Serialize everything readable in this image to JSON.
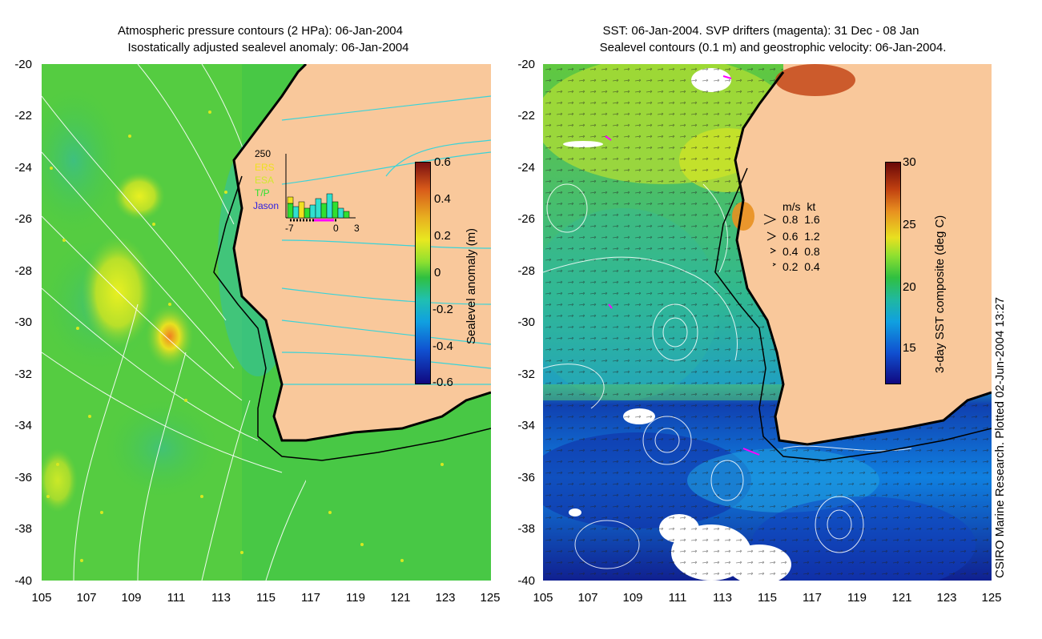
{
  "left_panel": {
    "title_line1": "Atmospheric pressure contours (2 HPa): 06-Jan-2004",
    "title_line2": "Isostatically adjusted sealevel anomaly: 06-Jan-2004",
    "y_ticks": [
      "-20",
      "-22",
      "-24",
      "-26",
      "-28",
      "-30",
      "-32",
      "-34",
      "-36",
      "-38",
      "-40"
    ],
    "x_ticks": [
      "105",
      "107",
      "109",
      "111",
      "113",
      "115",
      "117",
      "119",
      "121",
      "123",
      "125"
    ],
    "colorbar": {
      "label": "Sealevel anomaly (m)",
      "ticks": [
        "0.6",
        "0.4",
        "0.2",
        "0",
        "-0.2",
        "-0.4",
        "-0.6"
      ]
    },
    "histogram": {
      "max_label": "250",
      "legend": [
        "ERS",
        "ESA",
        "T/P",
        "Jason"
      ],
      "x_labels": [
        "-7",
        "0",
        "3"
      ]
    }
  },
  "right_panel": {
    "title_line1": "SST: 06-Jan-2004. SVP drifters (magenta): 31 Dec - 08 Jan",
    "title_line2": "Sealevel contours (0.1 m) and geostrophic velocity: 06-Jan-2004.",
    "y_ticks": [
      "-20",
      "-22",
      "-24",
      "-26",
      "-28",
      "-30",
      "-32",
      "-34",
      "-36",
      "-38",
      "-40"
    ],
    "x_ticks": [
      "105",
      "107",
      "109",
      "111",
      "113",
      "115",
      "117",
      "119",
      "121",
      "123",
      "125"
    ],
    "colorbar": {
      "label": "3-day SST composite (deg C)",
      "ticks": [
        "30",
        "25",
        "20",
        "15"
      ]
    },
    "velocity_legend": {
      "header": "m/s  kt",
      "rows": [
        "0.8  1.6",
        "0.6  1.2",
        "0.4  0.8",
        "0.2  0.4"
      ]
    }
  },
  "credit": "CSIRO Marine Research. Plotted 02-Jun-2004 13:27",
  "colors": {
    "land": "#f9c89b",
    "coast": "#000000",
    "left_sea": "#3cc84a",
    "drifter": "#ff00ff"
  }
}
